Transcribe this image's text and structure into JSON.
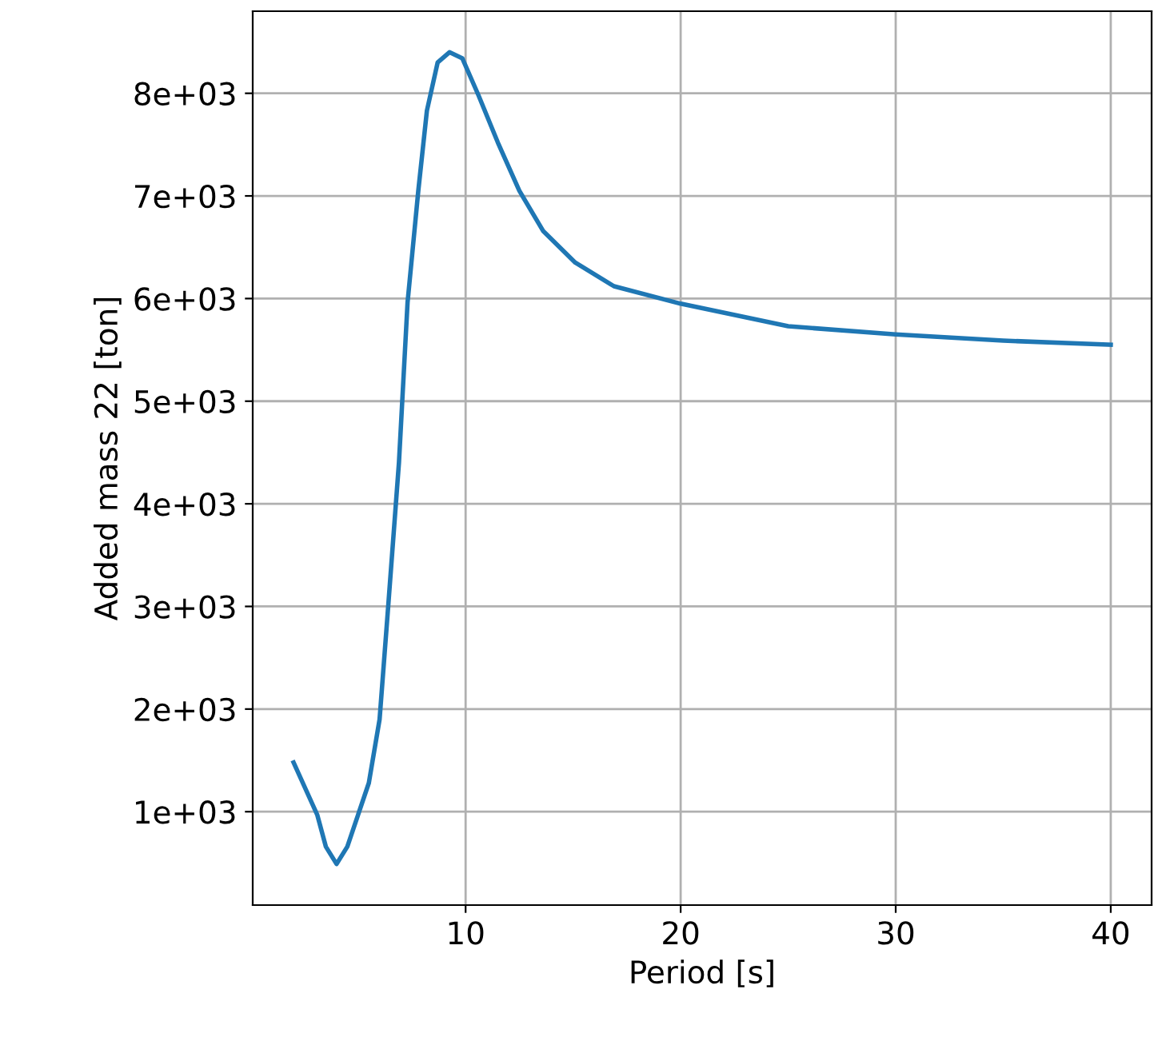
{
  "chart_data": {
    "type": "line",
    "xlabel": "Period [s]",
    "ylabel": "Added mass 22 [ton]",
    "x": [
      2,
      3.1,
      3.5,
      4.0,
      4.5,
      5.0,
      5.5,
      6.0,
      6.4,
      6.9,
      7.3,
      7.8,
      8.2,
      8.7,
      9.25,
      9.85,
      10.6,
      11.5,
      12.5,
      13.6,
      15.1,
      16.9,
      20,
      25,
      30,
      35,
      40
    ],
    "series": [
      {
        "color": "#1f77b4",
        "values": [
          1480,
          970,
          660,
          490,
          660,
          970,
          1280,
          1900,
          3000,
          4400,
          5960,
          7050,
          7830,
          8300,
          8400,
          8340,
          7980,
          7520,
          7050,
          6660,
          6350,
          6120,
          5950,
          5730,
          5650,
          5590,
          5550
        ]
      }
    ],
    "xlim": [
      0.1,
      41.9
    ],
    "xticks": [
      10,
      20,
      30,
      40
    ],
    "ylim": [
      90,
      8800
    ],
    "yticks": [
      {
        "value": 1000,
        "label": "1e+03"
      },
      {
        "value": 2000,
        "label": "2e+03"
      },
      {
        "value": 3000,
        "label": "3e+03"
      },
      {
        "value": 4000,
        "label": "4e+03"
      },
      {
        "value": 5000,
        "label": "5e+03"
      },
      {
        "value": 6000,
        "label": "6e+03"
      },
      {
        "value": 7000,
        "label": "7e+03"
      },
      {
        "value": 8000,
        "label": "8e+03"
      }
    ],
    "grid": true,
    "legend": false
  }
}
